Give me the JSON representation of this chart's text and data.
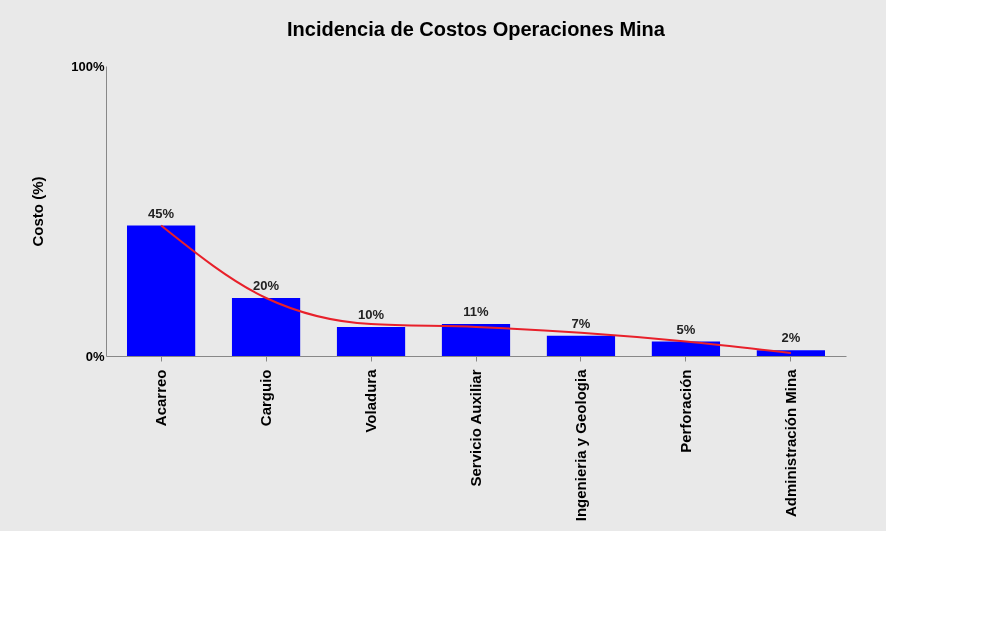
{
  "chart_data": {
    "type": "bar",
    "title": "Incidencia  de Costos Operaciones Mina",
    "ylabel": "Costo (%)",
    "categories": [
      "Acarreo",
      "Carguio",
      "Voladura",
      "Servicio Auxiliar",
      "Ingenieria y Geologia",
      "Perforación",
      "Administración Mina"
    ],
    "series": [
      {
        "color": "#0000ff",
        "values": [
          45,
          20,
          10,
          11,
          7,
          5,
          2
        ],
        "value_labels": [
          "45%",
          "20%",
          "10%",
          "11%",
          "7%",
          "5%",
          "2%"
        ]
      },
      {
        "type": "line",
        "color": "#e8202a",
        "values": [
          45,
          20,
          11,
          10,
          8,
          5,
          1
        ]
      }
    ],
    "ylim": [
      0,
      100
    ],
    "yticks": [
      {
        "value": 0,
        "label": "0%"
      },
      {
        "value": 100,
        "label": "100%"
      }
    ],
    "grid": false
  }
}
